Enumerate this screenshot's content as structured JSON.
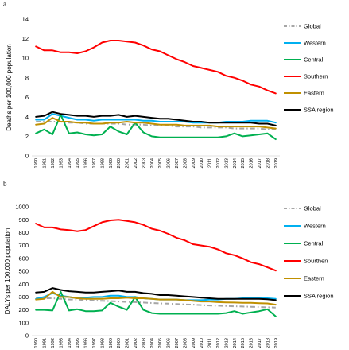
{
  "panel_letters": [
    "a",
    "b"
  ],
  "chart_data": [
    {
      "type": "line",
      "panel": "a",
      "ylabel": "Deaths per 100,000 population",
      "ylim": [
        0,
        14
      ],
      "yticks": [
        0,
        2,
        4,
        6,
        8,
        10,
        12,
        14
      ],
      "grid": false,
      "legend_position": "right",
      "x": [
        1990,
        1991,
        1992,
        1993,
        1994,
        1995,
        1996,
        1997,
        1998,
        1999,
        2000,
        2001,
        2002,
        2003,
        2004,
        2005,
        2006,
        2007,
        2008,
        2009,
        2010,
        2011,
        2012,
        2013,
        2014,
        2015,
        2016,
        2017,
        2018,
        2019
      ],
      "series": [
        {
          "name": "Global",
          "color": "#a6a6a6",
          "dash": "dashdot",
          "values": [
            3.5,
            3.5,
            3.5,
            3.5,
            3.4,
            3.4,
            3.3,
            3.3,
            3.3,
            3.3,
            3.3,
            3.2,
            3.2,
            3.2,
            3.1,
            3.1,
            3.1,
            3.0,
            3.0,
            3.0,
            2.9,
            2.9,
            2.9,
            2.9,
            2.8,
            2.8,
            2.8,
            2.8,
            2.7,
            2.7
          ]
        },
        {
          "name": "Western",
          "color": "#00b0f0",
          "dash": "solid",
          "values": [
            3.7,
            3.7,
            4.3,
            4.1,
            3.9,
            3.7,
            3.7,
            3.6,
            3.7,
            3.7,
            3.7,
            3.7,
            3.7,
            3.6,
            3.6,
            3.5,
            3.5,
            3.5,
            3.5,
            3.4,
            3.4,
            3.4,
            3.4,
            3.5,
            3.5,
            3.5,
            3.6,
            3.6,
            3.6,
            3.4
          ]
        },
        {
          "name": "Central",
          "color": "#00b050",
          "dash": "solid",
          "values": [
            2.3,
            2.7,
            2.2,
            4.2,
            2.3,
            2.4,
            2.2,
            2.1,
            2.2,
            3.0,
            2.5,
            2.2,
            3.4,
            2.4,
            2.0,
            1.9,
            1.9,
            1.9,
            1.9,
            1.9,
            1.9,
            1.9,
            1.9,
            2.0,
            2.3,
            2.0,
            2.1,
            2.2,
            2.3,
            1.7
          ]
        },
        {
          "name": "Southern",
          "color": "#ff0000",
          "dash": "solid",
          "values": [
            11.2,
            10.8,
            10.8,
            10.6,
            10.6,
            10.5,
            10.7,
            11.1,
            11.6,
            11.8,
            11.8,
            11.7,
            11.6,
            11.3,
            10.9,
            10.7,
            10.3,
            9.9,
            9.6,
            9.2,
            9.0,
            8.8,
            8.6,
            8.2,
            8.0,
            7.7,
            7.3,
            7.1,
            6.7,
            6.4
          ]
        },
        {
          "name": "Eastern",
          "color": "#c09000",
          "dash": "solid",
          "values": [
            3.2,
            3.3,
            3.9,
            3.5,
            3.5,
            3.4,
            3.4,
            3.3,
            3.3,
            3.4,
            3.4,
            3.5,
            3.4,
            3.4,
            3.3,
            3.2,
            3.2,
            3.2,
            3.1,
            3.1,
            3.1,
            3.1,
            3.0,
            3.0,
            3.0,
            3.0,
            3.0,
            3.0,
            2.9,
            2.8
          ]
        },
        {
          "name": "SSA region",
          "color": "#000000",
          "dash": "solid",
          "values": [
            4.0,
            4.1,
            4.5,
            4.3,
            4.2,
            4.1,
            4.1,
            4.0,
            4.1,
            4.1,
            4.2,
            4.0,
            4.1,
            4.0,
            3.9,
            3.8,
            3.8,
            3.7,
            3.6,
            3.5,
            3.5,
            3.4,
            3.4,
            3.4,
            3.4,
            3.4,
            3.4,
            3.3,
            3.3,
            3.1
          ]
        }
      ]
    },
    {
      "type": "line",
      "panel": "b",
      "ylabel": "DALYs per 100,000 population",
      "ylim": [
        0,
        1000
      ],
      "yticks": [
        0,
        100,
        200,
        300,
        400,
        500,
        600,
        700,
        800,
        900,
        1000
      ],
      "grid": false,
      "legend_position": "right",
      "x": [
        1990,
        1991,
        1992,
        1993,
        1994,
        1995,
        1996,
        1997,
        1998,
        1999,
        2000,
        2001,
        2002,
        2003,
        2004,
        2005,
        2006,
        2007,
        2008,
        2009,
        2010,
        2011,
        2012,
        2013,
        2014,
        2015,
        2016,
        2017,
        2018,
        2019
      ],
      "series": [
        {
          "name": "Global",
          "color": "#a6a6a6",
          "dash": "dashdot",
          "values": [
            290,
            290,
            290,
            285,
            280,
            280,
            275,
            272,
            270,
            268,
            265,
            262,
            260,
            257,
            253,
            250,
            248,
            245,
            242,
            240,
            237,
            234,
            232,
            230,
            228,
            226,
            224,
            222,
            220,
            218
          ]
        },
        {
          "name": "Western",
          "color": "#00b0f0",
          "dash": "solid",
          "values": [
            285,
            300,
            330,
            310,
            300,
            290,
            295,
            300,
            300,
            310,
            310,
            300,
            300,
            290,
            285,
            280,
            280,
            280,
            275,
            275,
            275,
            280,
            280,
            285,
            285,
            290,
            295,
            295,
            290,
            285
          ]
        },
        {
          "name": "Central",
          "color": "#00b050",
          "dash": "solid",
          "values": [
            200,
            200,
            195,
            340,
            195,
            205,
            190,
            190,
            195,
            255,
            225,
            200,
            300,
            200,
            175,
            170,
            170,
            170,
            170,
            170,
            170,
            170,
            170,
            175,
            190,
            170,
            180,
            190,
            205,
            150
          ]
        },
        {
          "name": "Sourthen",
          "color": "#ff0000",
          "dash": "solid",
          "values": [
            870,
            840,
            840,
            825,
            820,
            810,
            820,
            850,
            880,
            895,
            900,
            890,
            880,
            860,
            830,
            815,
            790,
            760,
            740,
            710,
            700,
            690,
            670,
            640,
            625,
            600,
            570,
            555,
            530,
            505
          ]
        },
        {
          "name": "Eastern",
          "color": "#c09000",
          "dash": "solid",
          "values": [
            280,
            285,
            340,
            300,
            300,
            290,
            285,
            285,
            285,
            290,
            290,
            295,
            290,
            290,
            285,
            280,
            280,
            280,
            275,
            270,
            265,
            265,
            260,
            258,
            257,
            255,
            255,
            252,
            250,
            240
          ]
        },
        {
          "name": "SSA region",
          "color": "#000000",
          "dash": "solid",
          "values": [
            335,
            340,
            370,
            355,
            345,
            340,
            335,
            335,
            340,
            345,
            350,
            340,
            340,
            330,
            325,
            315,
            315,
            310,
            305,
            300,
            295,
            290,
            285,
            285,
            285,
            285,
            285,
            285,
            283,
            275
          ]
        }
      ]
    }
  ]
}
